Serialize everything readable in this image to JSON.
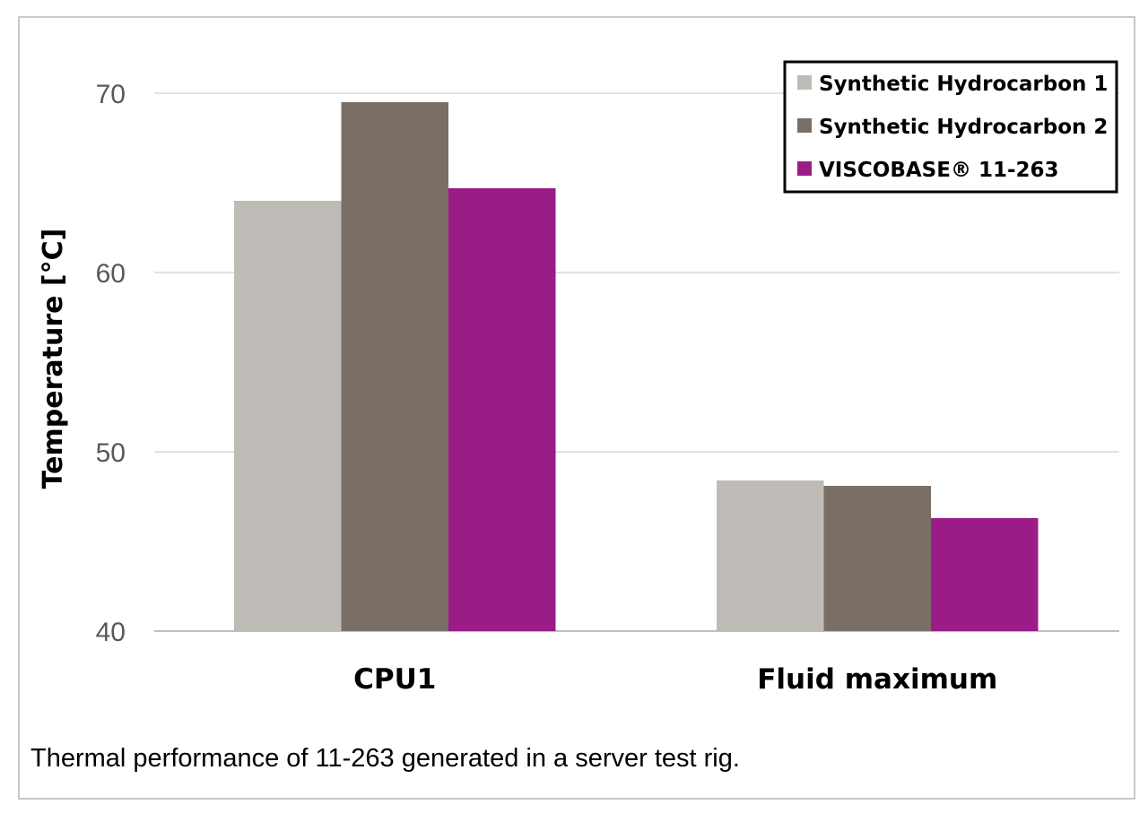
{
  "caption": "Thermal performance of 11-263 generated in a server test rig.",
  "chart_data": {
    "type": "bar",
    "title": "",
    "xlabel": "",
    "ylabel": "Temperature [°C]",
    "ylim": [
      40,
      72
    ],
    "yticks": [
      40,
      50,
      60,
      70
    ],
    "grid": true,
    "legend_position": "top-right",
    "categories": [
      "CPU1",
      "Fluid maximum"
    ],
    "series": [
      {
        "name": "Synthetic Hydrocarbon 1",
        "color": "#bfbcb7",
        "values": [
          64.0,
          48.4
        ]
      },
      {
        "name": "Synthetic Hydrocarbon 2",
        "color": "#7a6f66",
        "values": [
          69.5,
          48.1
        ]
      },
      {
        "name": "VISCOBASE® 11-263",
        "color": "#9b1c87",
        "values": [
          64.7,
          46.3
        ]
      }
    ]
  }
}
